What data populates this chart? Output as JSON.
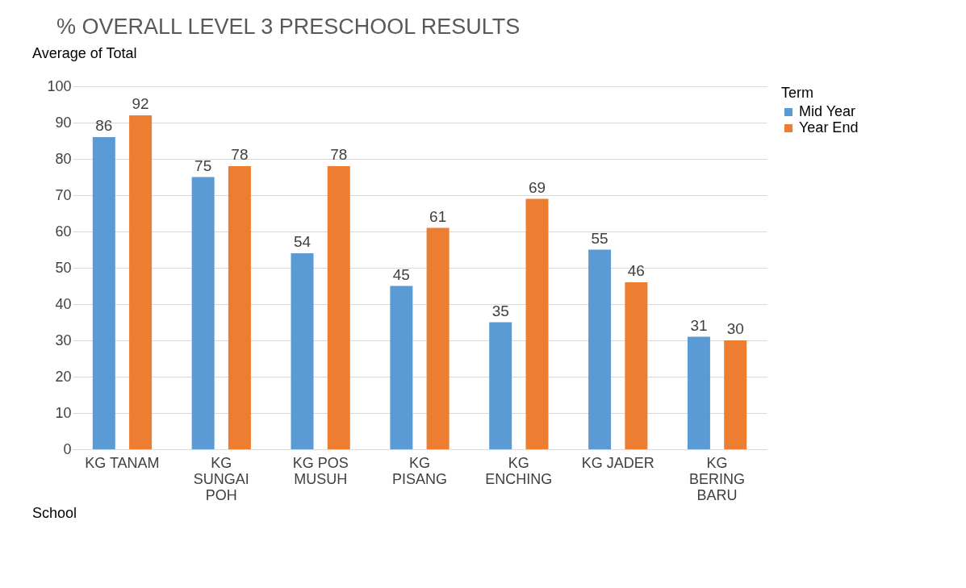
{
  "chart_data": {
    "type": "bar",
    "title": "% OVERALL LEVEL 3 PRESCHOOL RESULTS",
    "categories": [
      "KG TANAM",
      "KG SUNGAI POH",
      "KG POS MUSUH",
      "KG PISANG",
      "KG ENCHING",
      "KG JADER",
      "KG BERING BARU"
    ],
    "series": [
      {
        "name": "Mid Year",
        "color": "#5b9bd5",
        "values": [
          86,
          75,
          54,
          45,
          35,
          55,
          31
        ]
      },
      {
        "name": "Year End",
        "color": "#ed7d31",
        "values": [
          92,
          78,
          78,
          61,
          69,
          46,
          30
        ]
      }
    ],
    "legend_title": "Term",
    "annotations": [
      "Average of Total",
      "School"
    ],
    "ylim": [
      0,
      100
    ],
    "yticks": [
      0,
      10,
      20,
      30,
      40,
      50,
      60,
      70,
      80,
      90,
      100
    ],
    "grid": "y",
    "legend": "right",
    "data_labels": true
  }
}
